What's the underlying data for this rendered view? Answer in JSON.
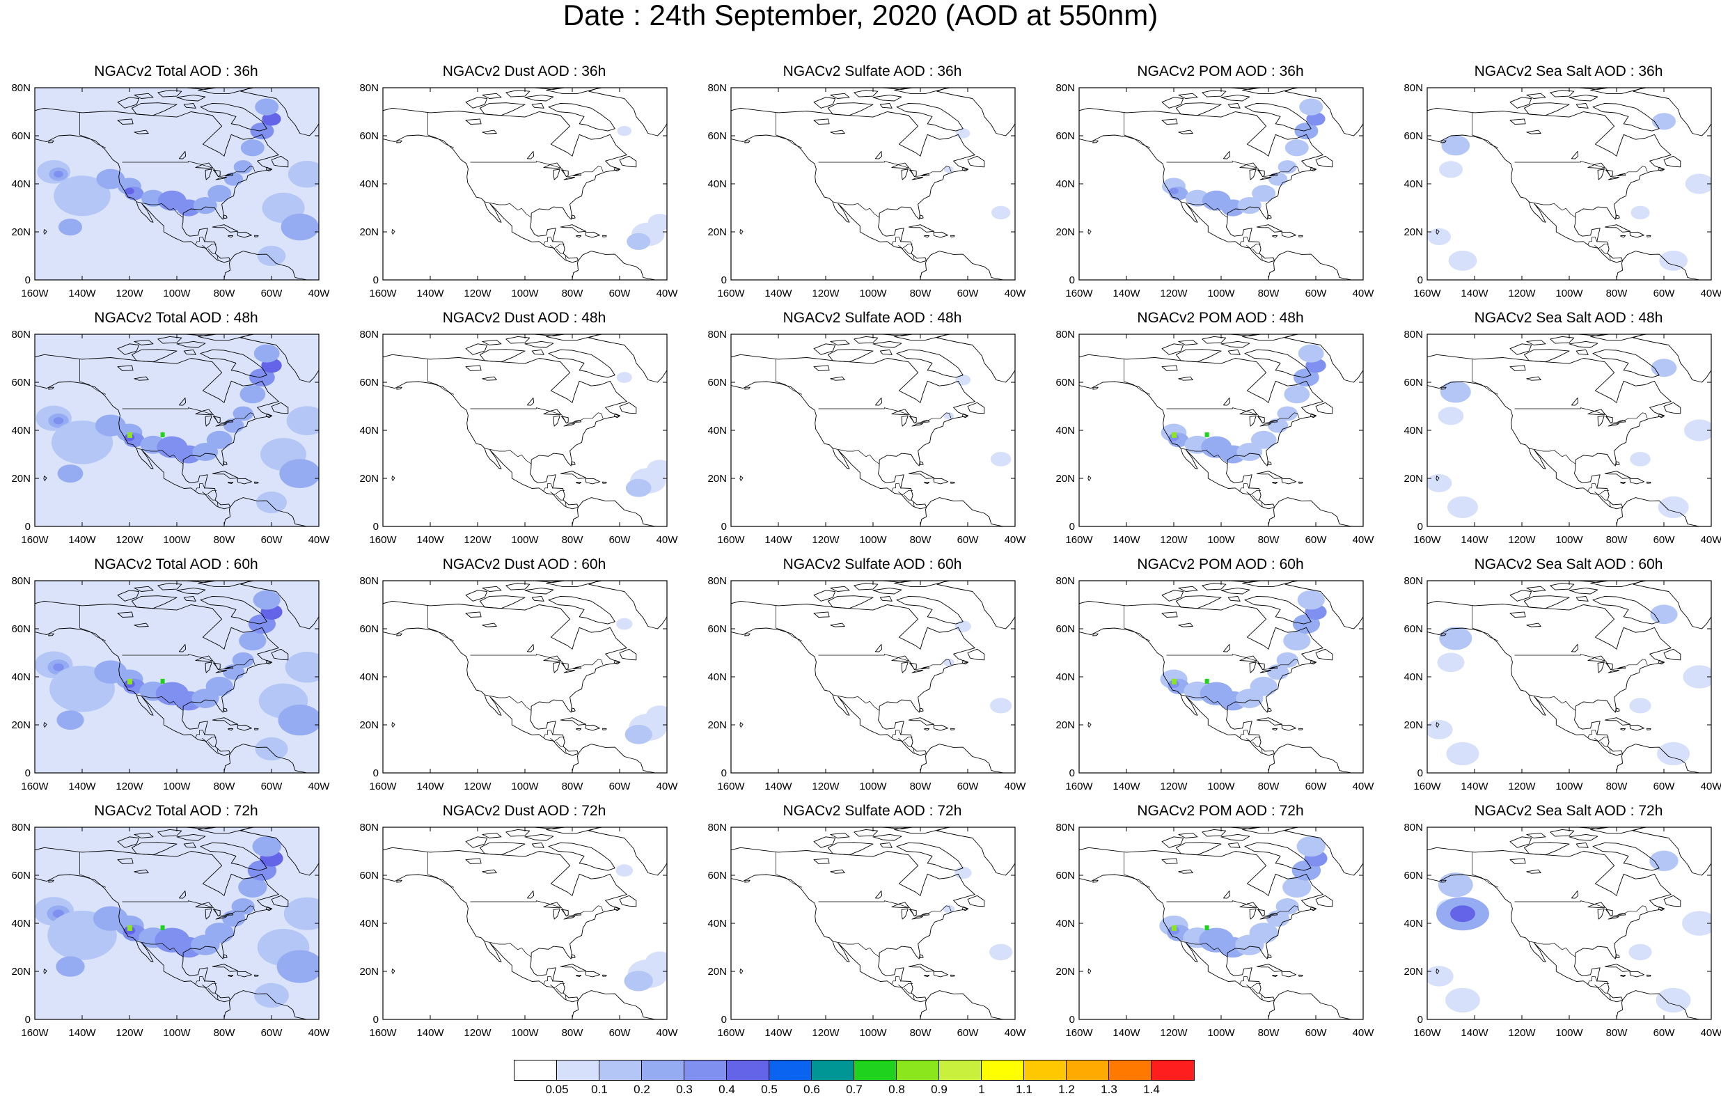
{
  "title": "Date : 24th  September, 2020 (AOD at 550nm)",
  "lat_ticks": [
    "0",
    "20N",
    "40N",
    "60N",
    "80N"
  ],
  "lon_ticks": [
    "160W",
    "140W",
    "120W",
    "100W",
    "80W",
    "60W",
    "40W"
  ],
  "map_extent": {
    "lon": [
      -160,
      -40
    ],
    "lat": [
      0,
      80
    ]
  },
  "species": [
    "Total",
    "Dust",
    "Sulfate",
    "POM",
    "Sea Salt"
  ],
  "forecast_hours": [
    "36h",
    "48h",
    "60h",
    "72h"
  ],
  "panels": [
    [
      "NGACv2 Total AOD : 36h",
      "NGACv2 Dust AOD : 36h",
      "NGACv2 Sulfate AOD : 36h",
      "NGACv2 POM AOD : 36h",
      "NGACv2 Sea Salt AOD : 36h"
    ],
    [
      "NGACv2 Total AOD : 48h",
      "NGACv2 Dust AOD : 48h",
      "NGACv2 Sulfate AOD : 48h",
      "NGACv2 POM AOD : 48h",
      "NGACv2 Sea Salt AOD : 48h"
    ],
    [
      "NGACv2 Total AOD : 60h",
      "NGACv2 Dust AOD : 60h",
      "NGACv2 Sulfate AOD : 60h",
      "NGACv2 POM AOD : 60h",
      "NGACv2 Sea Salt AOD : 60h"
    ],
    [
      "NGACv2 Total AOD : 72h",
      "NGACv2 Dust AOD : 72h",
      "NGACv2 Sulfate AOD : 72h",
      "NGACv2 POM AOD : 72h",
      "NGACv2 Sea Salt  AOD : 72h"
    ]
  ],
  "colorbar": {
    "levels": [
      "0.05",
      "0.1",
      "0.2",
      "0.3",
      "0.4",
      "0.5",
      "0.6",
      "0.7",
      "0.8",
      "0.9",
      "1",
      "1.1",
      "1.2",
      "1.3",
      "1.4"
    ],
    "colors": [
      "#ffffff",
      "#d6e0fa",
      "#b4c6f5",
      "#96acf2",
      "#8090f0",
      "#6464e8",
      "#0a64f0",
      "#009696",
      "#1ed21e",
      "#8ce61e",
      "#c8f03c",
      "#ffff00",
      "#ffc800",
      "#ffaa00",
      "#ff7800",
      "#ff1e1e"
    ]
  }
}
